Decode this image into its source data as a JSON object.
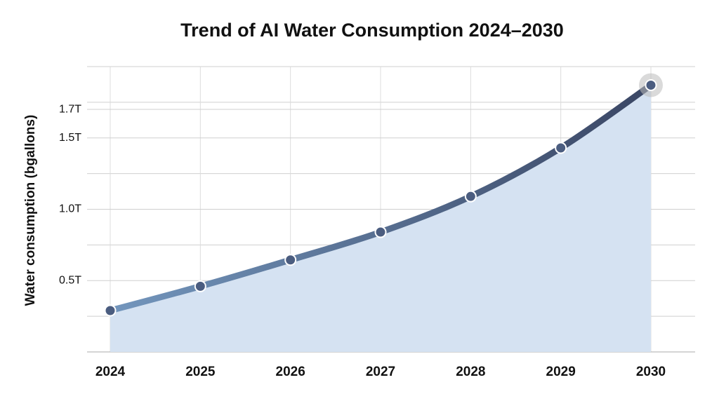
{
  "chart_data": {
    "type": "area",
    "title": "Trend of AI Water Consumption 2024–2030",
    "y_label": "Water consumption (bgallons)",
    "categories": [
      "2024",
      "2025",
      "2026",
      "2027",
      "2028",
      "2029",
      "2030"
    ],
    "series": [
      {
        "name": "Water consumption",
        "values": [
          0.29,
          0.46,
          0.645,
          0.84,
          1.09,
          1.43,
          1.87
        ],
        "line_colors": [
          "#7396bd",
          "#3a4664"
        ],
        "fill": "#d5e2f2",
        "marker_color": "#4b5d80"
      }
    ],
    "ylim": [
      0,
      2.0
    ],
    "yticks": [
      {
        "value": 0.5,
        "label": "0.5T"
      },
      {
        "value": 1.0,
        "label": "1.0T"
      },
      {
        "value": 1.5,
        "label": "1.5T"
      },
      {
        "value": 1.7,
        "label": "1.7T"
      }
    ],
    "minor_grid": [
      0.25,
      0.75,
      1.25,
      1.75,
      2.0
    ],
    "grid": true
  }
}
